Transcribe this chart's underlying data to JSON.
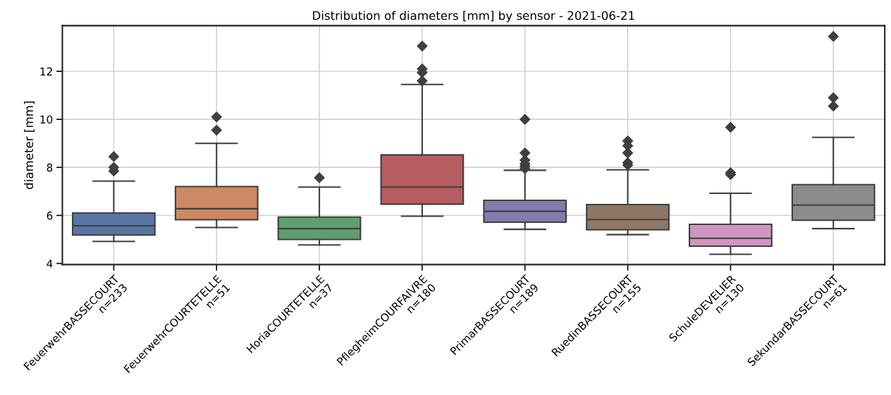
{
  "chart_data": {
    "type": "box",
    "title": "Distribution of diameters [mm] by sensor - 2021-06-21",
    "ylabel": "diameter [mm]",
    "categories": [
      "FeuerwehrBASSECOURT\nn=233",
      "FeuerwehrCOURTETELLE\nn=51",
      "HoriaCOURTETELLE\nn=37",
      "PflegheimCOURFAIVRE\nn=180",
      "PrimarBASSECOURT\nn=189",
      "RuedinBASSECOURT\nn=155",
      "SchuleDEVELIER\nn=130",
      "SekundarBASSECOURT\nn=61"
    ],
    "colors": [
      "#5975a4",
      "#cc8963",
      "#5f9e6e",
      "#b55d60",
      "#857aab",
      "#8d7866",
      "#d095bf",
      "#8c8c8c"
    ],
    "boxes": [
      {
        "low": 4.92,
        "q1": 5.18,
        "median": 5.57,
        "q3": 6.1,
        "high": 7.43,
        "outliers": [
          7.85,
          8.0,
          8.45
        ]
      },
      {
        "low": 5.5,
        "q1": 5.82,
        "median": 6.28,
        "q3": 7.2,
        "high": 9.0,
        "outliers": [
          9.55,
          10.1
        ]
      },
      {
        "low": 4.77,
        "q1": 5.0,
        "median": 5.45,
        "q3": 5.93,
        "high": 7.18,
        "outliers": [
          7.57
        ]
      },
      {
        "low": 5.97,
        "q1": 6.47,
        "median": 7.18,
        "q3": 8.52,
        "high": 11.45,
        "outliers": [
          11.6,
          11.95,
          12.1,
          13.05
        ]
      },
      {
        "low": 5.42,
        "q1": 5.72,
        "median": 6.17,
        "q3": 6.63,
        "high": 7.88,
        "outliers": [
          7.95,
          8.05,
          8.15,
          8.3,
          8.6,
          10.0
        ]
      },
      {
        "low": 5.2,
        "q1": 5.4,
        "median": 5.83,
        "q3": 6.45,
        "high": 7.9,
        "outliers": [
          8.1,
          8.2,
          8.6,
          8.9,
          9.1
        ]
      },
      {
        "low": 4.38,
        "q1": 4.72,
        "median": 5.05,
        "q3": 5.63,
        "high": 6.92,
        "outliers": [
          7.7,
          7.78,
          9.67
        ]
      },
      {
        "low": 5.45,
        "q1": 5.8,
        "median": 6.43,
        "q3": 7.28,
        "high": 9.25,
        "outliers": [
          10.55,
          10.9,
          13.45
        ]
      }
    ],
    "ylim": [
      3.95,
      13.9
    ],
    "yticks": [
      4,
      6,
      8,
      10,
      12
    ],
    "grid": true,
    "marker": "diamond"
  }
}
